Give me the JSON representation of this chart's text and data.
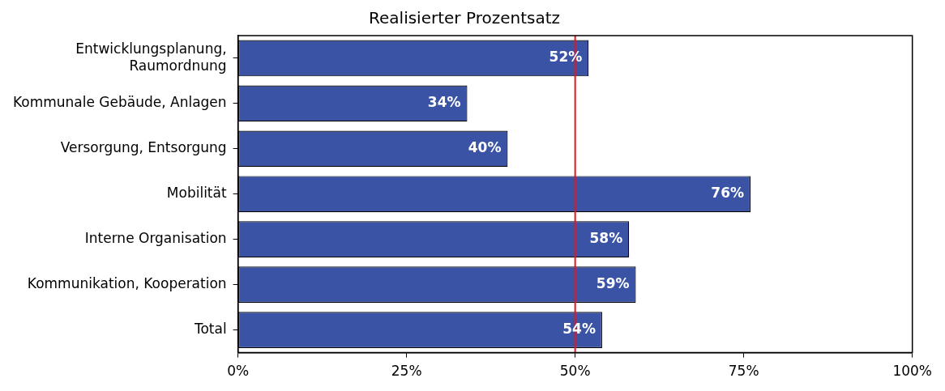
{
  "chart_data": {
    "type": "bar",
    "orientation": "horizontal",
    "title": "Realisierter Prozentsatz",
    "categories": [
      "Entwicklungsplanung,\nRaumordnung",
      "Kommunale Gebäude, Anlagen",
      "Versorgung, Entsorgung",
      "Mobilität",
      "Interne Organisation",
      "Kommunikation, Kooperation",
      "Total"
    ],
    "values": [
      52,
      34,
      40,
      76,
      58,
      59,
      54
    ],
    "value_labels": [
      "52%",
      "34%",
      "40%",
      "76%",
      "58%",
      "59%",
      "54%"
    ],
    "color": "#3a53a4",
    "xlim": [
      0,
      100
    ],
    "xticks": [
      {
        "value": 0,
        "label": "0%"
      },
      {
        "value": 25,
        "label": "25%"
      },
      {
        "value": 50,
        "label": "50%"
      },
      {
        "value": 75,
        "label": "75%"
      },
      {
        "value": 100,
        "label": "100%"
      }
    ],
    "ref_lines": [
      {
        "axis": "x",
        "value": 50,
        "color": "#e8141c"
      }
    ],
    "grid": false,
    "legend": false
  }
}
